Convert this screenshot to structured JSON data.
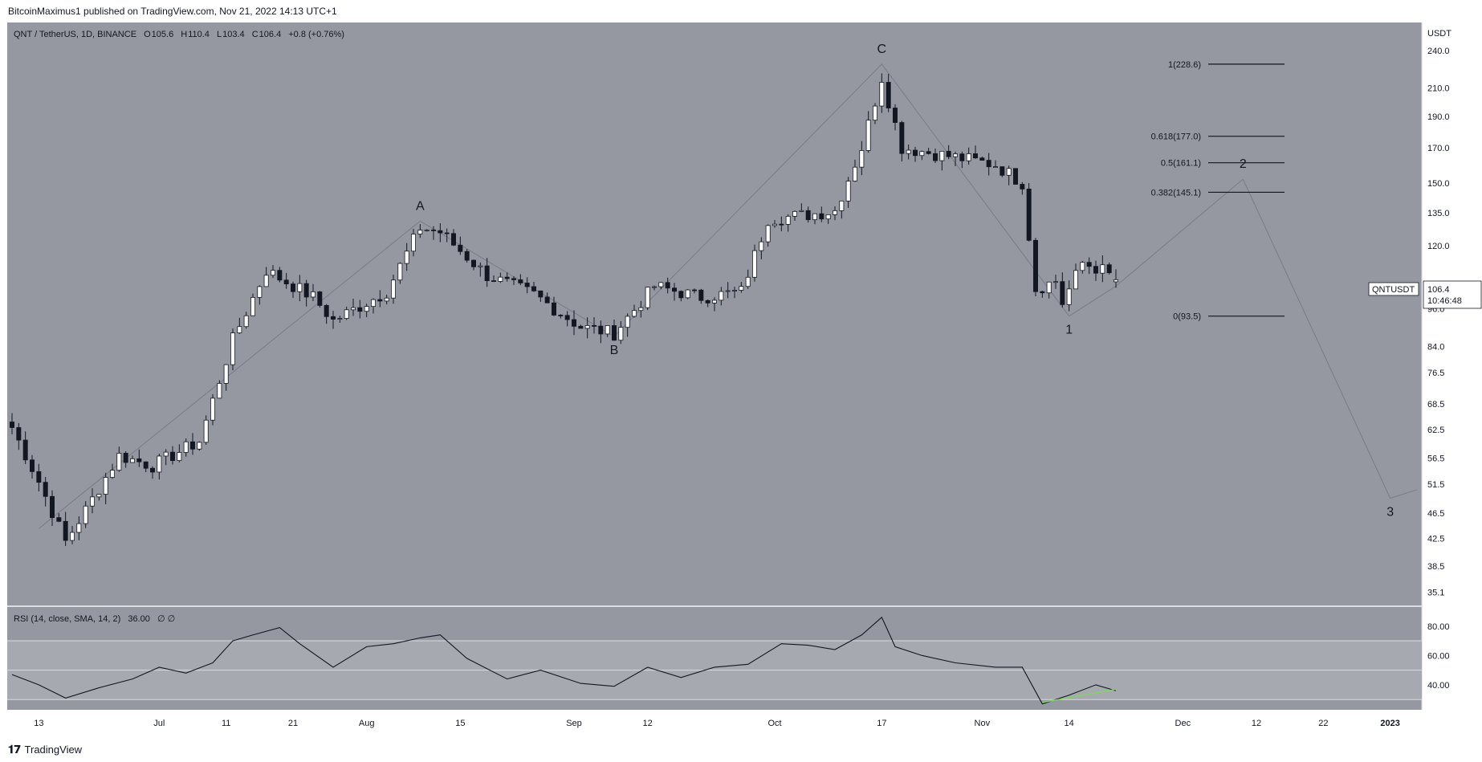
{
  "header": {
    "published_by": "BitcoinMaximus1 published on TradingView.com, Nov 21, 2022 14:13 UTC+1"
  },
  "footer": {
    "brand": "TradingView"
  },
  "legend": {
    "symbol": "QNT / TetherUS, 1D, BINANCE",
    "o_label": "O",
    "o": "105.6",
    "h_label": "H",
    "h": "110.4",
    "l_label": "L",
    "l": "103.4",
    "c_label": "C",
    "c": "106.4",
    "change": "+0.8 (+0.76%)"
  },
  "price_axis": {
    "currency": "USDT",
    "ticks": [
      "240.0",
      "210.0",
      "190.0",
      "170.0",
      "150.0",
      "135.0",
      "120.0",
      "96.0",
      "84.0",
      "76.5",
      "68.5",
      "62.5",
      "56.5",
      "51.5",
      "46.5",
      "42.5",
      "38.5",
      "35.1"
    ]
  },
  "last_price": {
    "symbol_tag": "QNTUSDT",
    "price": "106.4",
    "countdown": "10:46:48"
  },
  "time_axis": {
    "labels": [
      "13",
      "Jul",
      "11",
      "21",
      "Aug",
      "15",
      "Sep",
      "12",
      "Oct",
      "17",
      "Nov",
      "14",
      "Dec",
      "12",
      "22",
      "2023"
    ]
  },
  "rsi": {
    "label": "RSI (14, close, SMA, 14, 2)",
    "value": "36.00",
    "extra": "∅ ∅",
    "ticks": [
      "80.00",
      "60.00",
      "40.00"
    ]
  },
  "chart_data": [
    {
      "type": "candlestick",
      "title": "QNT / TetherUS, 1D, BINANCE",
      "y_unit": "USDT",
      "y_scale": "log",
      "ylim": [
        33.5,
        265
      ],
      "x_range": [
        "2022-06-09",
        "2023-01-05"
      ],
      "keypoints": [
        {
          "date": "2022-06-09",
          "close": 63
        },
        {
          "date": "2022-06-13",
          "close": 52
        },
        {
          "date": "2022-06-17",
          "close": 42
        },
        {
          "date": "2022-06-20",
          "close": 47
        },
        {
          "date": "2022-06-25",
          "close": 57
        },
        {
          "date": "2022-06-30",
          "close": 55
        },
        {
          "date": "2022-07-07",
          "close": 60
        },
        {
          "date": "2022-07-12",
          "close": 86
        },
        {
          "date": "2022-07-17",
          "close": 110
        },
        {
          "date": "2022-07-24",
          "close": 100
        },
        {
          "date": "2022-07-27",
          "close": 92
        },
        {
          "date": "2022-08-04",
          "close": 102
        },
        {
          "date": "2022-08-09",
          "close": 128
        },
        {
          "date": "2022-08-12",
          "close": 126
        },
        {
          "date": "2022-08-19",
          "close": 108
        },
        {
          "date": "2022-08-26",
          "close": 101
        },
        {
          "date": "2022-09-02",
          "close": 90
        },
        {
          "date": "2022-09-07",
          "close": 88
        },
        {
          "date": "2022-09-13",
          "close": 104
        },
        {
          "date": "2022-09-20",
          "close": 100
        },
        {
          "date": "2022-09-26",
          "close": 102
        },
        {
          "date": "2022-09-30",
          "close": 132
        },
        {
          "date": "2022-10-06",
          "close": 134
        },
        {
          "date": "2022-10-10",
          "close": 136
        },
        {
          "date": "2022-10-14",
          "close": 170
        },
        {
          "date": "2022-10-17",
          "close": 218
        },
        {
          "date": "2022-10-20",
          "close": 170
        },
        {
          "date": "2022-10-27",
          "close": 165
        },
        {
          "date": "2022-11-03",
          "close": 160
        },
        {
          "date": "2022-11-07",
          "close": 150
        },
        {
          "date": "2022-11-09",
          "close": 103
        },
        {
          "date": "2022-11-12",
          "close": 106
        },
        {
          "date": "2022-11-13",
          "close": 98
        },
        {
          "date": "2022-11-16",
          "close": 113
        },
        {
          "date": "2022-11-19",
          "close": 110
        },
        {
          "date": "2022-11-21",
          "close": 106.4
        }
      ],
      "last": {
        "open": 105.6,
        "high": 110.4,
        "low": 103.4,
        "close": 106.4
      },
      "wave_labels": [
        {
          "label": "A",
          "date": "2022-08-09",
          "price": 131
        },
        {
          "label": "B",
          "date": "2022-09-07",
          "price": 87
        },
        {
          "label": "C",
          "date": "2022-10-17",
          "price": 228.6
        },
        {
          "label": "1",
          "date": "2022-11-14",
          "price": 93.5
        },
        {
          "label": "2",
          "date": "2022-12-10",
          "price": 152
        },
        {
          "label": "3",
          "date": "2023-01-01",
          "price": 49
        }
      ],
      "projection_path": [
        {
          "date": "2022-11-14",
          "price": 93.5
        },
        {
          "date": "2022-11-21",
          "price": 104
        },
        {
          "date": "2022-12-10",
          "price": 152
        },
        {
          "date": "2023-01-01",
          "price": 49
        },
        {
          "date": "2023-01-05",
          "price": 50.5
        }
      ],
      "fib_levels": [
        {
          "label": "1(228.6)",
          "ratio": 1,
          "price": 228.6
        },
        {
          "label": "0.618(177.0)",
          "ratio": 0.618,
          "price": 177.0
        },
        {
          "label": "0.5(161.1)",
          "ratio": 0.5,
          "price": 161.1
        },
        {
          "label": "0.382(145.1)",
          "ratio": 0.382,
          "price": 145.1
        },
        {
          "label": "0(93.5)",
          "ratio": 0,
          "price": 93.5
        }
      ]
    },
    {
      "type": "line",
      "title": "RSI (14, close, SMA, 14, 2)",
      "ylim": [
        23,
        93
      ],
      "bands": {
        "upper": 70,
        "middle": 50,
        "lower": 30
      },
      "ticks": [
        80,
        60,
        40
      ],
      "series": [
        {
          "points": [
            {
              "date": "2022-06-09",
              "v": 47
            },
            {
              "date": "2022-06-13",
              "v": 40
            },
            {
              "date": "2022-06-17",
              "v": 31
            },
            {
              "date": "2022-06-22",
              "v": 38
            },
            {
              "date": "2022-06-27",
              "v": 44
            },
            {
              "date": "2022-07-01",
              "v": 52
            },
            {
              "date": "2022-07-05",
              "v": 48
            },
            {
              "date": "2022-07-09",
              "v": 55
            },
            {
              "date": "2022-07-12",
              "v": 70
            },
            {
              "date": "2022-07-15",
              "v": 74
            },
            {
              "date": "2022-07-19",
              "v": 79
            },
            {
              "date": "2022-07-22",
              "v": 68
            },
            {
              "date": "2022-07-27",
              "v": 52
            },
            {
              "date": "2022-08-01",
              "v": 66
            },
            {
              "date": "2022-08-05",
              "v": 68
            },
            {
              "date": "2022-08-09",
              "v": 72
            },
            {
              "date": "2022-08-12",
              "v": 74
            },
            {
              "date": "2022-08-16",
              "v": 58
            },
            {
              "date": "2022-08-22",
              "v": 44
            },
            {
              "date": "2022-08-27",
              "v": 50
            },
            {
              "date": "2022-09-02",
              "v": 41
            },
            {
              "date": "2022-09-07",
              "v": 39
            },
            {
              "date": "2022-09-12",
              "v": 52
            },
            {
              "date": "2022-09-17",
              "v": 45
            },
            {
              "date": "2022-09-22",
              "v": 52
            },
            {
              "date": "2022-09-27",
              "v": 54
            },
            {
              "date": "2022-10-02",
              "v": 68
            },
            {
              "date": "2022-10-06",
              "v": 67
            },
            {
              "date": "2022-10-10",
              "v": 64
            },
            {
              "date": "2022-10-14",
              "v": 74
            },
            {
              "date": "2022-10-17",
              "v": 86
            },
            {
              "date": "2022-10-19",
              "v": 66
            },
            {
              "date": "2022-10-23",
              "v": 60
            },
            {
              "date": "2022-10-28",
              "v": 55
            },
            {
              "date": "2022-11-03",
              "v": 52
            },
            {
              "date": "2022-11-07",
              "v": 52
            },
            {
              "date": "2022-11-10",
              "v": 27
            },
            {
              "date": "2022-11-14",
              "v": 33
            },
            {
              "date": "2022-11-18",
              "v": 40
            },
            {
              "date": "2022-11-21",
              "v": 36
            }
          ]
        }
      ],
      "divergence_line": [
        {
          "date": "2022-11-10",
          "v": 28
        },
        {
          "date": "2022-11-21",
          "v": 37
        }
      ]
    }
  ]
}
